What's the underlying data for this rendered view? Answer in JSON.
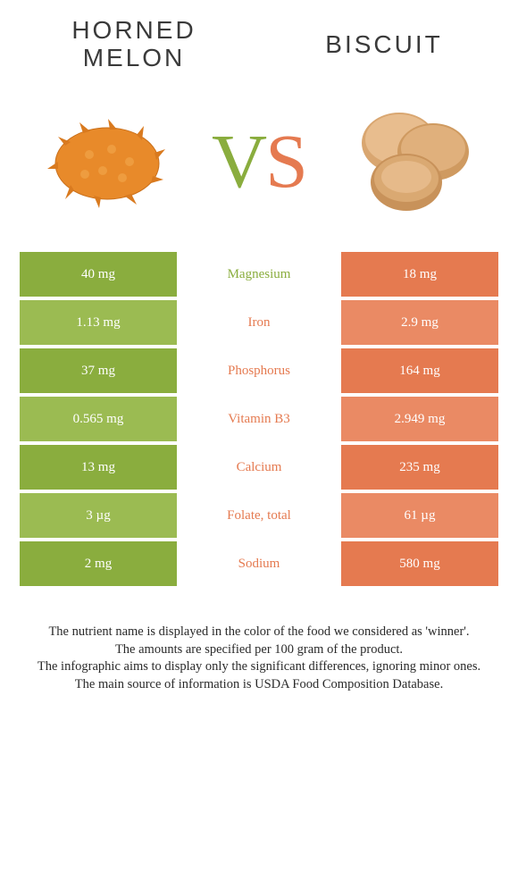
{
  "colors": {
    "green_dark": "#8aad3e",
    "green_light": "#9bbb52",
    "orange_dark": "#e57a50",
    "orange_light": "#ea8a64",
    "text": "#3a3a3a",
    "white": "#ffffff"
  },
  "header": {
    "left_title": "HORNED MELON",
    "right_title": "BISCUIT"
  },
  "vs": {
    "v": "V",
    "s": "S"
  },
  "table": {
    "rows": [
      {
        "left": "40 mg",
        "label": "Magnesium",
        "right": "18 mg",
        "winner": "left"
      },
      {
        "left": "1.13 mg",
        "label": "Iron",
        "right": "2.9 mg",
        "winner": "right"
      },
      {
        "left": "37 mg",
        "label": "Phosphorus",
        "right": "164 mg",
        "winner": "right"
      },
      {
        "left": "0.565 mg",
        "label": "Vitamin B3",
        "right": "2.949 mg",
        "winner": "right"
      },
      {
        "left": "13 mg",
        "label": "Calcium",
        "right": "235 mg",
        "winner": "right"
      },
      {
        "left": "3 µg",
        "label": "Folate, total",
        "right": "61 µg",
        "winner": "right"
      },
      {
        "left": "2 mg",
        "label": "Sodium",
        "right": "580 mg",
        "winner": "right"
      }
    ]
  },
  "footer": {
    "line1": "The nutrient name is displayed in the color of the food we considered as 'winner'.",
    "line2": "The amounts are specified per 100 gram of the product.",
    "line3": "The infographic aims to display only the significant differences, ignoring minor ones.",
    "line4": "The main source of information is USDA Food Composition Database."
  }
}
